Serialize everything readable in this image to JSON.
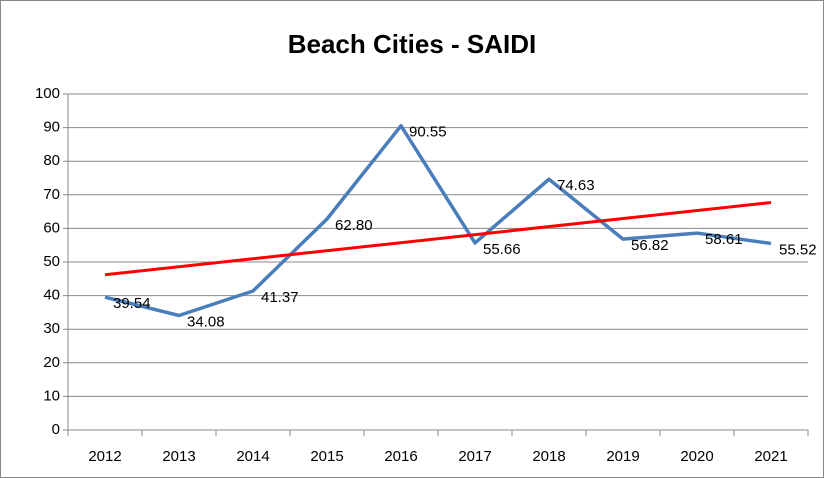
{
  "chart_data": {
    "type": "line",
    "title": "Beach Cities - SAIDI",
    "categories": [
      "2012",
      "2013",
      "2014",
      "2015",
      "2016",
      "2017",
      "2018",
      "2019",
      "2020",
      "2021"
    ],
    "series": [
      {
        "color": "#4a7ebb",
        "values": [
          39.54,
          34.08,
          41.37,
          62.8,
          90.55,
          55.66,
          74.63,
          56.82,
          58.61,
          55.52
        ],
        "value_labels": [
          "39.54",
          "34.08",
          "41.37",
          "62.80",
          "90.55",
          "55.66",
          "74.63",
          "56.82",
          "58.61",
          "55.52"
        ]
      }
    ],
    "trendline": {
      "color": "#ff0000",
      "values": [
        46.2,
        67.7
      ]
    },
    "ylim": [
      0,
      100
    ],
    "yticks": [
      0,
      10,
      20,
      30,
      40,
      50,
      60,
      70,
      80,
      90,
      100
    ],
    "grid": true
  }
}
